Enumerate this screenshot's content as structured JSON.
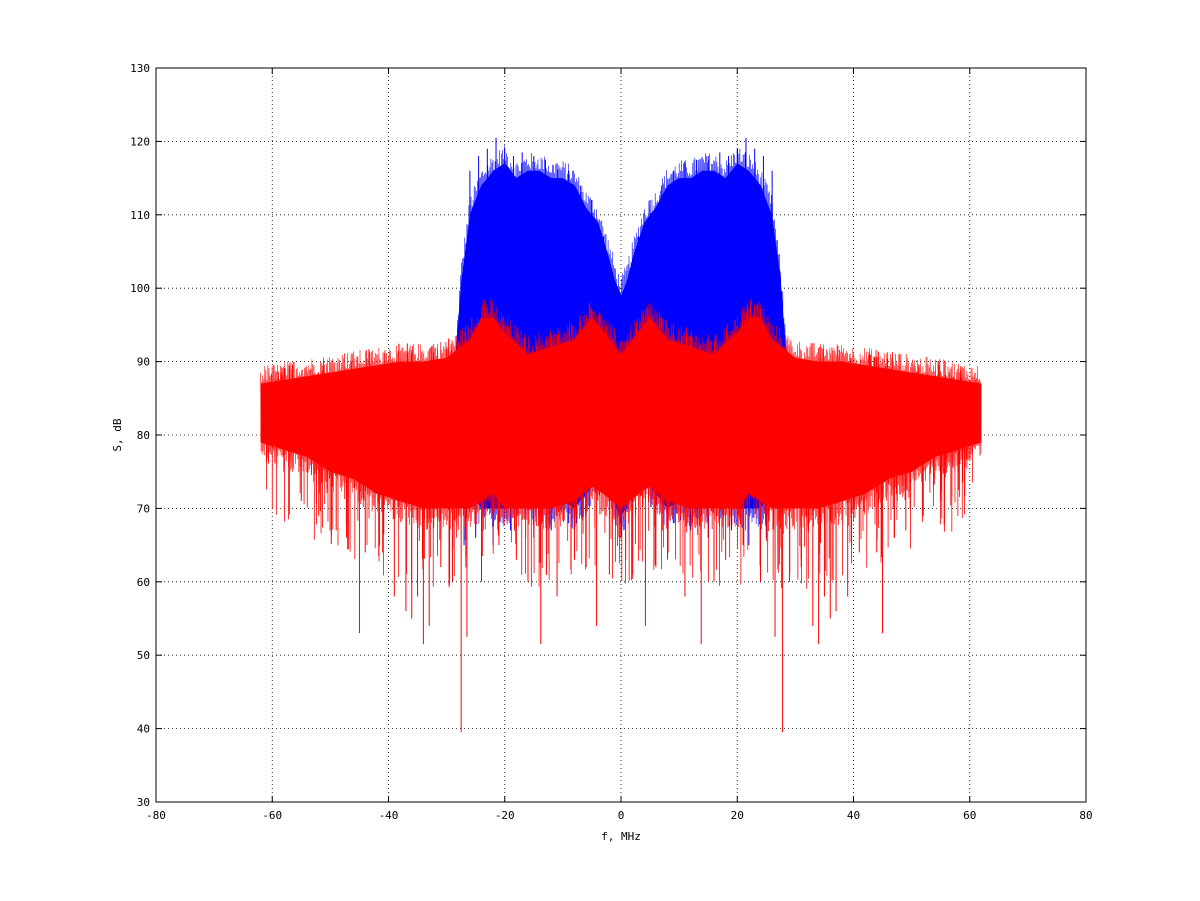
{
  "chart_data": {
    "type": "line",
    "title": "",
    "xlabel": "f, MHz",
    "ylabel": "S, dB",
    "xlim": [
      -80,
      80
    ],
    "ylim": [
      30,
      130
    ],
    "xticks": [
      -80,
      -60,
      -40,
      -20,
      0,
      20,
      40,
      60,
      80
    ],
    "yticks": [
      30,
      40,
      50,
      60,
      70,
      80,
      90,
      100,
      110,
      120,
      130
    ],
    "grid": true,
    "legend": "none",
    "series": [
      {
        "color": "#0000ff",
        "x": [
          -28.5,
          -27.5,
          -26,
          -24,
          -22,
          -20,
          -18,
          -16,
          -14,
          -12,
          -10,
          -8,
          -6,
          -4,
          -2,
          -1,
          0,
          1,
          2,
          4,
          6,
          8,
          10,
          12,
          14,
          16,
          18,
          20,
          22,
          24,
          26,
          27.5,
          28.5
        ],
        "upper": [
          90,
          101,
          110,
          114,
          116,
          117,
          115,
          116,
          116,
          115,
          115,
          114,
          111,
          109,
          104,
          101,
          99,
          101,
          104,
          109,
          111,
          114,
          115,
          115,
          116,
          116,
          115,
          117,
          116,
          114,
          110,
          101,
          90
        ],
        "lower": [
          85,
          74,
          72,
          70,
          70,
          70,
          72,
          71,
          70,
          70,
          71,
          70,
          72,
          74,
          75,
          70,
          69,
          70,
          75,
          74,
          72,
          70,
          71,
          70,
          70,
          71,
          72,
          70,
          70,
          70,
          72,
          74,
          85
        ]
      },
      {
        "color": "#ff0000",
        "x": [
          -62,
          -58,
          -54,
          -50,
          -46,
          -42,
          -38,
          -34,
          -30,
          -26,
          -24,
          -22,
          -20,
          -16,
          -12,
          -8,
          -5,
          -3,
          0,
          3,
          5,
          8,
          12,
          16,
          20,
          22,
          24,
          26,
          30,
          34,
          38,
          42,
          46,
          50,
          54,
          58,
          62
        ],
        "upper": [
          87,
          87.5,
          88,
          88.5,
          89,
          89.5,
          90,
          90,
          90.5,
          93,
          96,
          96,
          94,
          91,
          92,
          93,
          96,
          94,
          91,
          94,
          96,
          93,
          92,
          91,
          94,
          96,
          96,
          93,
          90.5,
          90,
          90,
          89.5,
          89,
          88.5,
          88,
          87.5,
          87
        ],
        "lower": [
          79,
          78,
          77,
          75,
          74,
          72,
          71,
          70,
          70,
          70,
          71,
          72,
          70,
          70,
          70,
          71,
          73,
          72,
          70,
          72,
          73,
          71,
          70,
          70,
          70,
          72,
          71,
          70,
          70,
          70,
          71,
          72,
          74,
          75,
          77,
          78,
          79
        ]
      }
    ],
    "red_spikes_down": [
      [
        -58,
        75
      ],
      [
        -55,
        71
      ],
      [
        -52,
        69
      ],
      [
        -49,
        67
      ],
      [
        -47,
        66
      ],
      [
        -45,
        53
      ],
      [
        -44,
        64
      ],
      [
        -41,
        64
      ],
      [
        -39,
        58
      ],
      [
        -37,
        56
      ],
      [
        -36,
        55
      ],
      [
        -35,
        58
      ],
      [
        -34,
        51.5
      ],
      [
        -33,
        54
      ],
      [
        -31,
        62
      ],
      [
        -29,
        60
      ],
      [
        -27.5,
        39.5
      ],
      [
        -26.5,
        52.5
      ],
      [
        -24,
        60
      ],
      [
        -21,
        65
      ],
      [
        -18,
        63
      ],
      [
        -16,
        60
      ],
      [
        -13.8,
        51.5
      ],
      [
        -11,
        58
      ],
      [
        -8,
        63
      ],
      [
        -6,
        62
      ],
      [
        -4.2,
        54
      ],
      [
        -2,
        61
      ],
      [
        0.8,
        63
      ],
      [
        2,
        61
      ],
      [
        4.2,
        54
      ],
      [
        6,
        62
      ],
      [
        8,
        63
      ],
      [
        11,
        58
      ],
      [
        13.8,
        51.5
      ],
      [
        16,
        60
      ],
      [
        18,
        63
      ],
      [
        21,
        65
      ],
      [
        24,
        60
      ],
      [
        26.5,
        52.5
      ],
      [
        27.8,
        39.5
      ],
      [
        29,
        60
      ],
      [
        31,
        62
      ],
      [
        33,
        54
      ],
      [
        34,
        51.5
      ],
      [
        35,
        58
      ],
      [
        36,
        55
      ],
      [
        37,
        56
      ],
      [
        39,
        58
      ],
      [
        41,
        64
      ],
      [
        44,
        64
      ],
      [
        45,
        53
      ],
      [
        47,
        66
      ],
      [
        49,
        67
      ],
      [
        52,
        69
      ],
      [
        55,
        71
      ],
      [
        58,
        75
      ]
    ],
    "blue_spikes_up": [
      [
        -26,
        116
      ],
      [
        -24.5,
        118
      ],
      [
        -23,
        119
      ],
      [
        -21.5,
        120.5
      ],
      [
        -20,
        119
      ],
      [
        -18.5,
        118
      ],
      [
        -17,
        118.5
      ],
      [
        -15,
        118
      ],
      [
        -13,
        117.5
      ],
      [
        -11,
        117
      ],
      [
        -9,
        116
      ],
      [
        -7,
        114
      ],
      [
        -5,
        112
      ],
      [
        -3,
        107
      ],
      [
        -1,
        101
      ],
      [
        1,
        101
      ],
      [
        3,
        107
      ],
      [
        5,
        112
      ],
      [
        7,
        114
      ],
      [
        9,
        116
      ],
      [
        11,
        117
      ],
      [
        13,
        117.5
      ],
      [
        15,
        118
      ],
      [
        17,
        118.5
      ],
      [
        18.5,
        118
      ],
      [
        20,
        119
      ],
      [
        21.5,
        120.5
      ],
      [
        23,
        119
      ],
      [
        24.5,
        118
      ],
      [
        26,
        116
      ]
    ],
    "blue_spikes_down": [
      [
        -27,
        65
      ],
      [
        -25,
        66
      ],
      [
        -22,
        65
      ],
      [
        -19,
        67
      ],
      [
        -15,
        66
      ],
      [
        -12,
        67
      ],
      [
        -9,
        68
      ],
      [
        -6,
        69
      ],
      [
        -2,
        70
      ],
      [
        0,
        68
      ],
      [
        2,
        70
      ],
      [
        6,
        69
      ],
      [
        9,
        68
      ],
      [
        12,
        67
      ],
      [
        15,
        66
      ],
      [
        19,
        67
      ],
      [
        22,
        65
      ],
      [
        25,
        66
      ],
      [
        27,
        65
      ]
    ]
  }
}
